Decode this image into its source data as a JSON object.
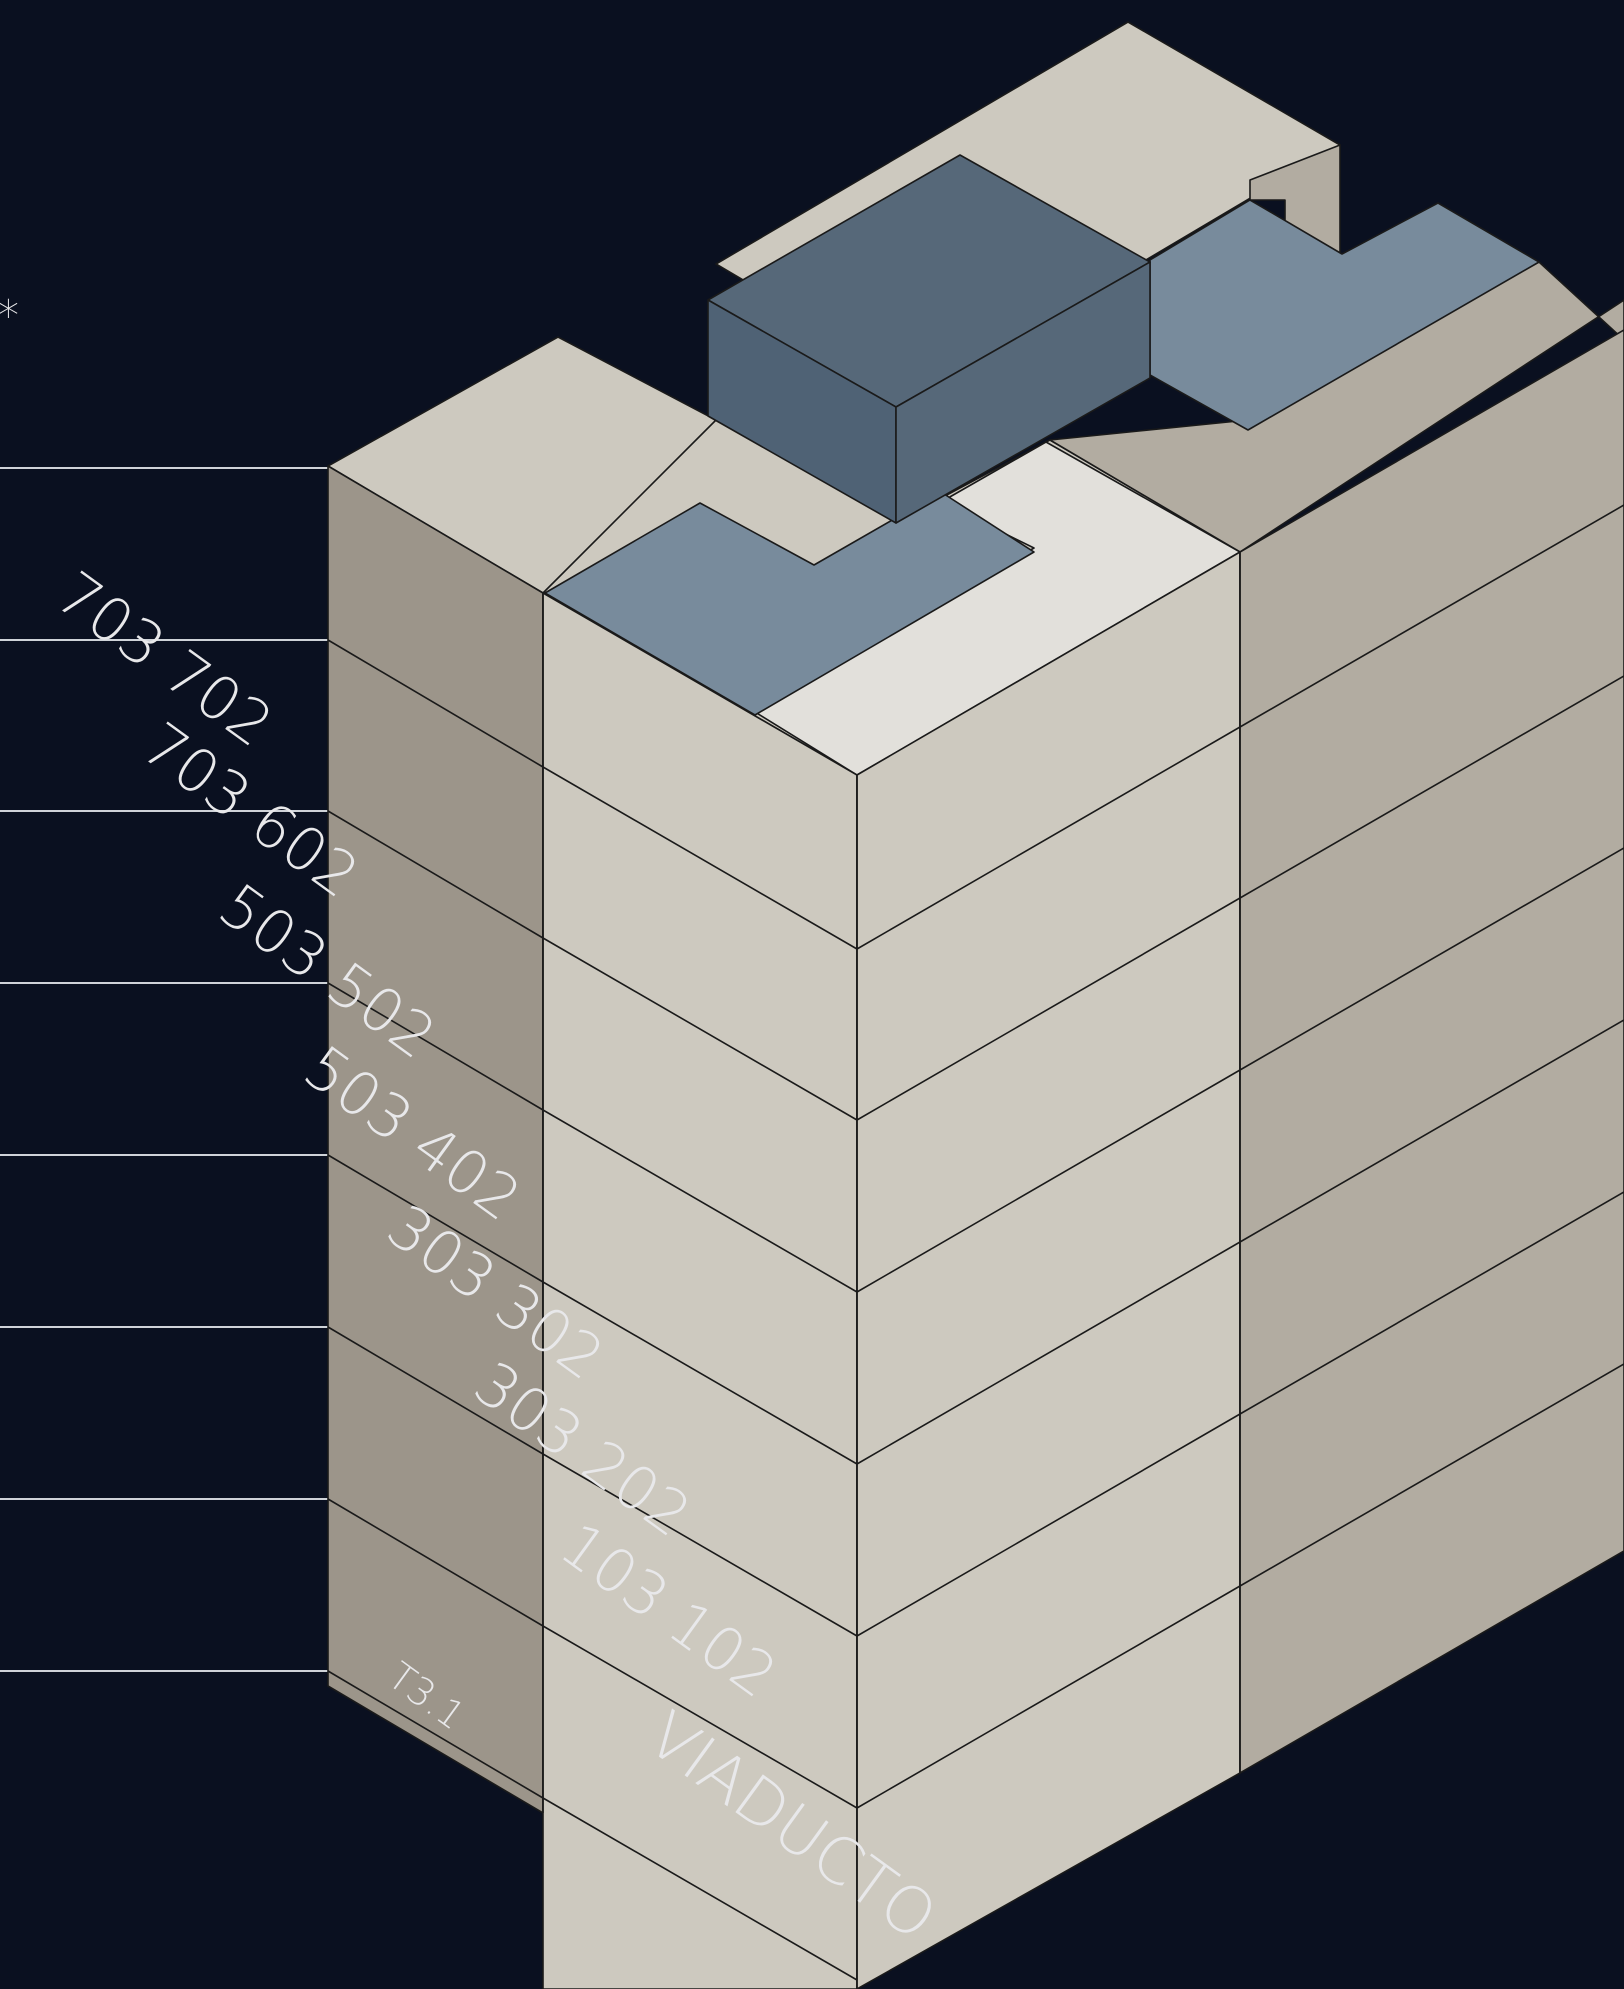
{
  "diagram": {
    "colors": {
      "background": "#0a1020",
      "facade_left": "#9c958a",
      "facade_front": "#cdc9bf",
      "facade_right": "#b2aca1",
      "roof_top": "#cdc9bf",
      "terrace_light": "#e2e0db",
      "terrace_blue": "#788b9c",
      "penthouse_top": "#566879",
      "penthouse_side": "#4f6275",
      "outline": "#1a1a1a",
      "guide_line": "#cfd3d8",
      "label_text": "#e8e8ea"
    },
    "marker": "*",
    "unit_labels": [
      "703 702",
      "703 602",
      "503 502",
      "503 402",
      "303 302",
      "303 202",
      "103 102"
    ],
    "tower_label": "T3.1",
    "street_label": "VIADUCTO"
  }
}
